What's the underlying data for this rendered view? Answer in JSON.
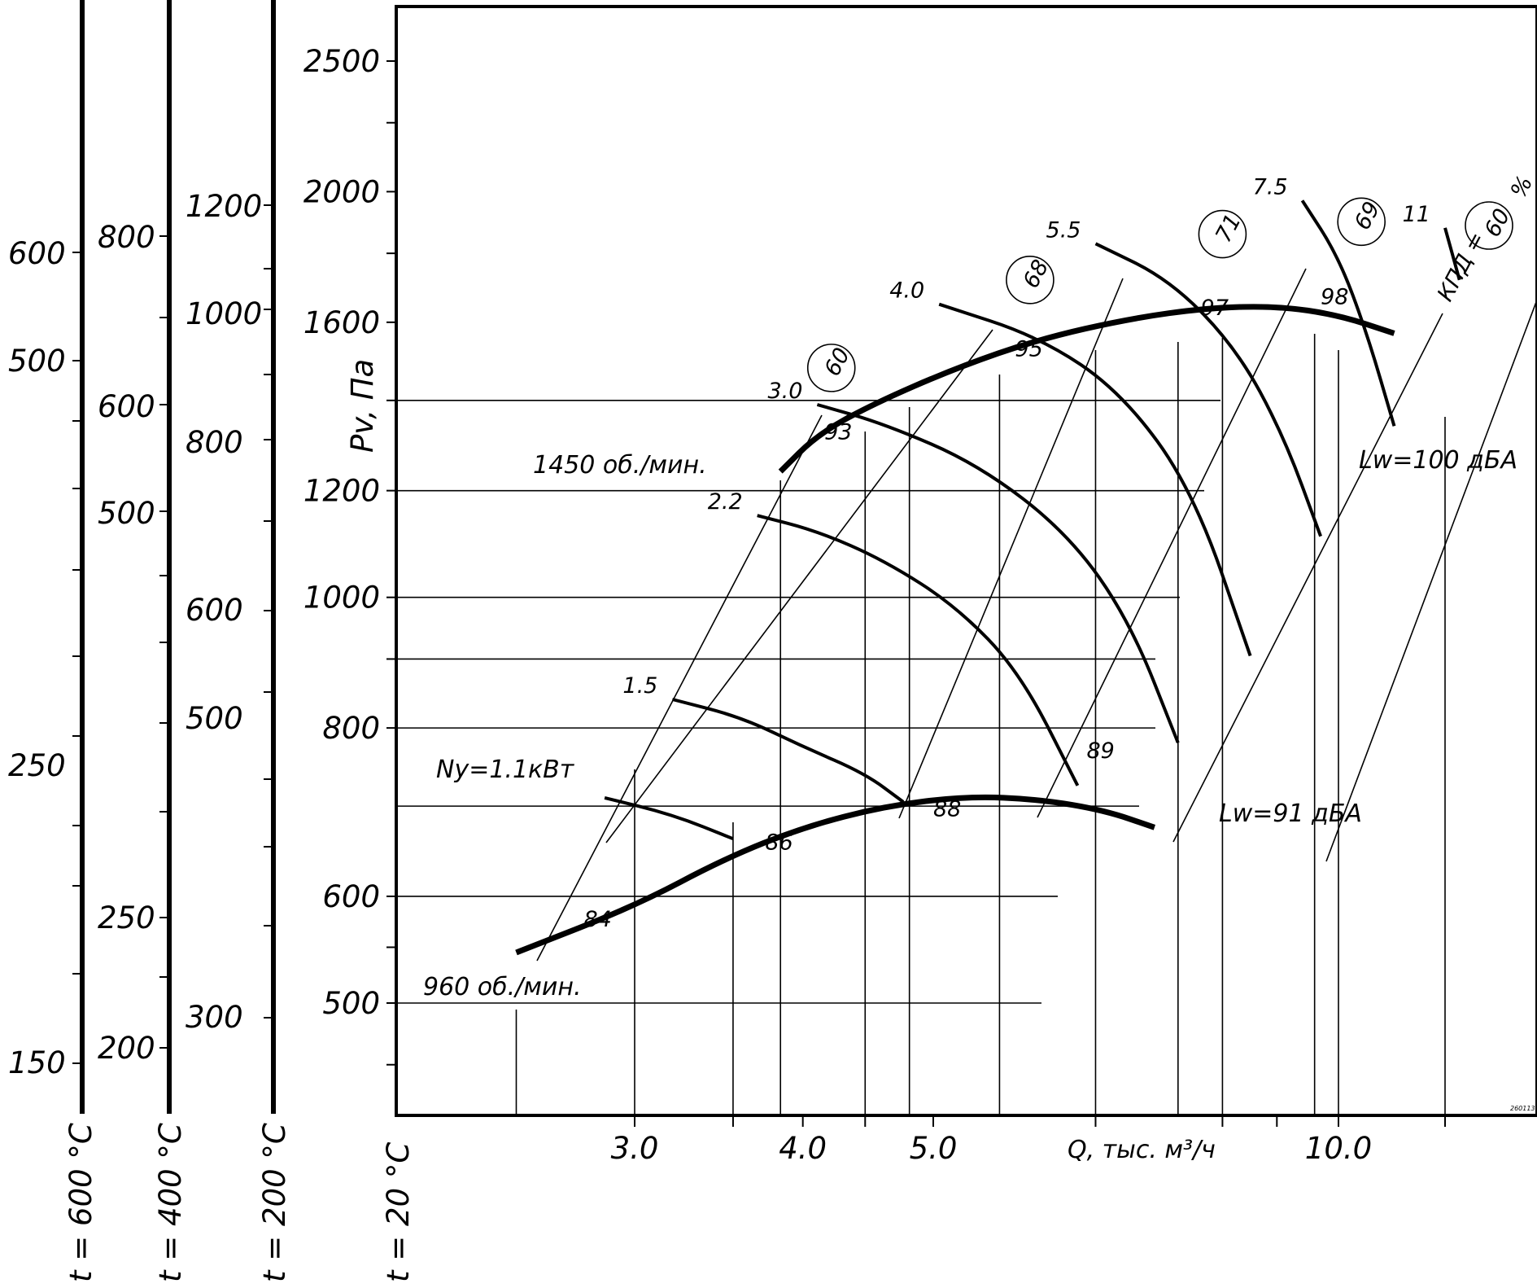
{
  "chart_data": {
    "type": "line",
    "title": "",
    "xlabel": "Q, тыс. м³/ч",
    "ylabel": "Pv, Па",
    "x_scale": "log",
    "y_scale": "log",
    "xlim": [
      2.0,
      16.0
    ],
    "ylim": [
      380,
      2750
    ],
    "x_ticks": [
      "3.0",
      "4.0",
      "5.0",
      "10.0"
    ],
    "x_tick_values": [
      3.0,
      4.0,
      5.0,
      10.0
    ],
    "y_ticks": [
      "500",
      "600",
      "800",
      "1000",
      "1200",
      "1600",
      "2000",
      "2500"
    ],
    "y_tick_values": [
      500,
      600,
      800,
      1000,
      1200,
      1600,
      2000,
      2500
    ],
    "temperature_scales": [
      {
        "label": "t = 20 °C",
        "ticks": []
      },
      {
        "label": "t = 200 °C",
        "ticks": [
          "300",
          "500",
          "600",
          "800",
          "1000",
          "1200"
        ]
      },
      {
        "label": "t = 400 °C",
        "ticks": [
          "200",
          "250",
          "500",
          "600",
          "800"
        ]
      },
      {
        "label": "t = 600 °C",
        "ticks": [
          "150",
          "250",
          "500",
          "600"
        ]
      }
    ],
    "series": [
      {
        "name": "1450 об./мин.",
        "x": [
          3.85,
          4.1,
          4.5,
          5.2,
          6.0,
          7.0,
          8.0,
          9.0,
          10.0,
          11.0
        ],
        "y": [
          1240,
          1320,
          1390,
          1480,
          1555,
          1610,
          1640,
          1645,
          1620,
          1570
        ]
      },
      {
        "name": "960 об./мин.",
        "x": [
          2.45,
          3.0,
          3.5,
          4.0,
          4.6,
          5.3,
          6.0,
          6.7,
          7.3
        ],
        "y": [
          545,
          590,
          640,
          675,
          700,
          712,
          708,
          695,
          675
        ]
      }
    ],
    "power_curves": [
      {
        "label": "1.1",
        "x": [
          2.85,
          3.2,
          3.55
        ],
        "y": [
          710,
          690,
          662
        ]
      },
      {
        "label": "1.5",
        "x": [
          3.2,
          3.6,
          4.0,
          4.45,
          4.75
        ],
        "y": [
          840,
          815,
          775,
          740,
          705
        ]
      },
      {
        "label": "2.2",
        "x": [
          3.7,
          4.1,
          4.6,
          5.2,
          5.8,
          6.4
        ],
        "y": [
          1150,
          1120,
          1065,
          985,
          880,
          725
        ]
      },
      {
        "label": "3.0",
        "x": [
          4.1,
          4.6,
          5.4,
          6.3,
          7.0,
          7.6
        ],
        "y": [
          1390,
          1345,
          1255,
          1115,
          960,
          780
        ]
      },
      {
        "label": "4.0",
        "x": [
          5.05,
          6.0,
          6.9,
          7.8,
          8.6
        ],
        "y": [
          1650,
          1560,
          1420,
          1200,
          905
        ]
      },
      {
        "label": "5.5",
        "x": [
          6.6,
          7.5,
          8.4,
          9.1,
          9.7
        ],
        "y": [
          1830,
          1720,
          1530,
          1320,
          1110
        ]
      },
      {
        "label": "7.5",
        "x": [
          9.4,
          10.0,
          10.5,
          11.0
        ],
        "y": [
          1970,
          1790,
          1570,
          1340
        ]
      },
      {
        "label": "11",
        "x": [
          12.0,
          12.3
        ],
        "y": [
          1880,
          1720
        ]
      }
    ],
    "efficiency_labels": [
      {
        "label": "60",
        "x": 4.2,
        "y": 1480
      },
      {
        "label": "68",
        "x": 5.9,
        "y": 1720
      },
      {
        "label": "71",
        "x": 8.2,
        "y": 1860
      },
      {
        "label": "69",
        "x": 10.4,
        "y": 1900
      }
    ],
    "efficiency_title": "КПД =",
    "efficiency_frame": {
      "label": "60",
      "unit": "%"
    },
    "power_prefix": "Ny=1.1кВт",
    "sound_levels": [
      "84",
      "86",
      "88",
      "89",
      "93",
      "95",
      "97",
      "98"
    ],
    "sound_extremes": [
      "Lw=91 дБА",
      "Lw=100 дБА"
    ],
    "stamp": "260113",
    "grid": false,
    "legend": "none"
  }
}
